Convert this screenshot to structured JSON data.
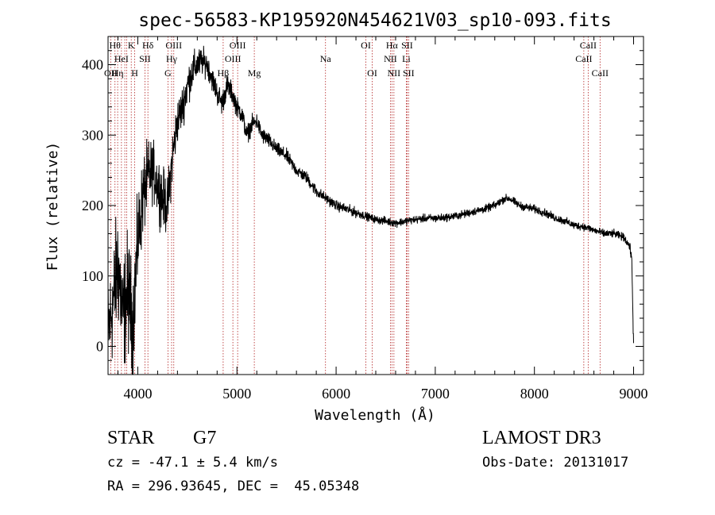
{
  "chart_data": {
    "type": "line",
    "title": "spec-56583-KP195920N454621V03_sp10-093.fits",
    "xlabel": "Wavelength (Å)",
    "ylabel": "Flux (relative)",
    "xlim": [
      3700,
      9100
    ],
    "ylim": [
      -40,
      440
    ],
    "x_ticks": [
      4000,
      5000,
      6000,
      7000,
      8000,
      9000
    ],
    "y_ticks": [
      0,
      100,
      200,
      300,
      400
    ],
    "series": [
      {
        "x": [
          3700,
          3750,
          3800,
          3850,
          3900,
          3950,
          4000,
          4050,
          4100,
          4150,
          4200,
          4250,
          4300,
          4350,
          4400,
          4450,
          4500,
          4550,
          4600,
          4650,
          4700,
          4750,
          4800,
          4850,
          4900,
          4950,
          5000,
          5050,
          5100,
          5150,
          5200,
          5250,
          5300,
          5400,
          5500,
          5600,
          5700,
          5800,
          5900,
          6000,
          6100,
          6200,
          6300,
          6400,
          6500,
          6600,
          6700,
          6800,
          6900,
          7000,
          7100,
          7200,
          7300,
          7400,
          7500,
          7600,
          7700,
          7750,
          7800,
          7850,
          7900,
          8000,
          8100,
          8200,
          8300,
          8400,
          8500,
          8600,
          8700,
          8800,
          8900,
          8950,
          8980,
          9000
        ],
        "y": [
          20,
          60,
          120,
          40,
          80,
          30,
          150,
          210,
          240,
          250,
          230,
          210,
          200,
          270,
          320,
          340,
          370,
          390,
          400,
          405,
          400,
          380,
          360,
          345,
          370,
          360,
          340,
          330,
          300,
          315,
          320,
          300,
          295,
          280,
          270,
          250,
          240,
          220,
          210,
          200,
          195,
          190,
          185,
          180,
          178,
          175,
          178,
          180,
          182,
          182,
          183,
          185,
          188,
          192,
          195,
          200,
          210,
          210,
          205,
          200,
          198,
          195,
          190,
          183,
          178,
          172,
          170,
          165,
          160,
          160,
          155,
          145,
          130,
          0
        ],
        "noise_sd": [
          50,
          55,
          60,
          55,
          60,
          50,
          45,
          40,
          35,
          30,
          30,
          30,
          28,
          25,
          22,
          20,
          20,
          18,
          16,
          14,
          12,
          12,
          12,
          12,
          12,
          10,
          10,
          10,
          9,
          9,
          8,
          8,
          8,
          7,
          7,
          6,
          6,
          6,
          5,
          5,
          5,
          5,
          4,
          4,
          4,
          4,
          4,
          4,
          4,
          4,
          4,
          4,
          4,
          4,
          4,
          4,
          4,
          4,
          4,
          4,
          4,
          4,
          4,
          4,
          4,
          4,
          4,
          4,
          4,
          4,
          4,
          4,
          6,
          10
        ]
      }
    ],
    "lines": [
      {
        "wl": 3727,
        "label": "OII",
        "row": 3
      },
      {
        "wl": 3770,
        "label": "Hθ",
        "row": 1
      },
      {
        "wl": 3797,
        "label": "Hη",
        "row": 3
      },
      {
        "wl": 3835,
        "label": "HeI",
        "row": 2
      },
      {
        "wl": 3869,
        "label": "",
        "row": 0
      },
      {
        "wl": 3889,
        "label": "",
        "row": 0
      },
      {
        "wl": 3934,
        "label": "K",
        "row": 1
      },
      {
        "wl": 3969,
        "label": "H",
        "row": 3
      },
      {
        "wl": 4072,
        "label": "SII",
        "row": 2
      },
      {
        "wl": 4102,
        "label": "Hδ",
        "row": 1
      },
      {
        "wl": 4304,
        "label": "G",
        "row": 3
      },
      {
        "wl": 4341,
        "label": "Hγ",
        "row": 2
      },
      {
        "wl": 4363,
        "label": "OIII",
        "row": 1
      },
      {
        "wl": 4861,
        "label": "Hβ",
        "row": 3
      },
      {
        "wl": 4959,
        "label": "OIII",
        "row": 2
      },
      {
        "wl": 5007,
        "label": "OIII",
        "row": 1
      },
      {
        "wl": 5175,
        "label": "Mg",
        "row": 3
      },
      {
        "wl": 5893,
        "label": "Na",
        "row": 2
      },
      {
        "wl": 6300,
        "label": "OI",
        "row": 1
      },
      {
        "wl": 6364,
        "label": "OI",
        "row": 3
      },
      {
        "wl": 6548,
        "label": "NII",
        "row": 2
      },
      {
        "wl": 6563,
        "label": "Hα",
        "row": 1
      },
      {
        "wl": 6583,
        "label": "NII",
        "row": 3
      },
      {
        "wl": 6708,
        "label": "Li",
        "row": 2
      },
      {
        "wl": 6716,
        "label": "SII",
        "row": 1
      },
      {
        "wl": 6731,
        "label": "SII",
        "row": 3
      },
      {
        "wl": 8498,
        "label": "CaII",
        "row": 2
      },
      {
        "wl": 8542,
        "label": "CaII",
        "row": 1
      },
      {
        "wl": 8662,
        "label": "CaII",
        "row": 3
      }
    ]
  },
  "info": {
    "object_class": "STAR",
    "subclass": "G7",
    "survey": "LAMOST DR3",
    "redshift": "cz = -47.1 ± 5.4 km/s",
    "obs_date": "Obs-Date: 20131017",
    "coords": "RA = 296.93645, DEC =  45.05348"
  }
}
